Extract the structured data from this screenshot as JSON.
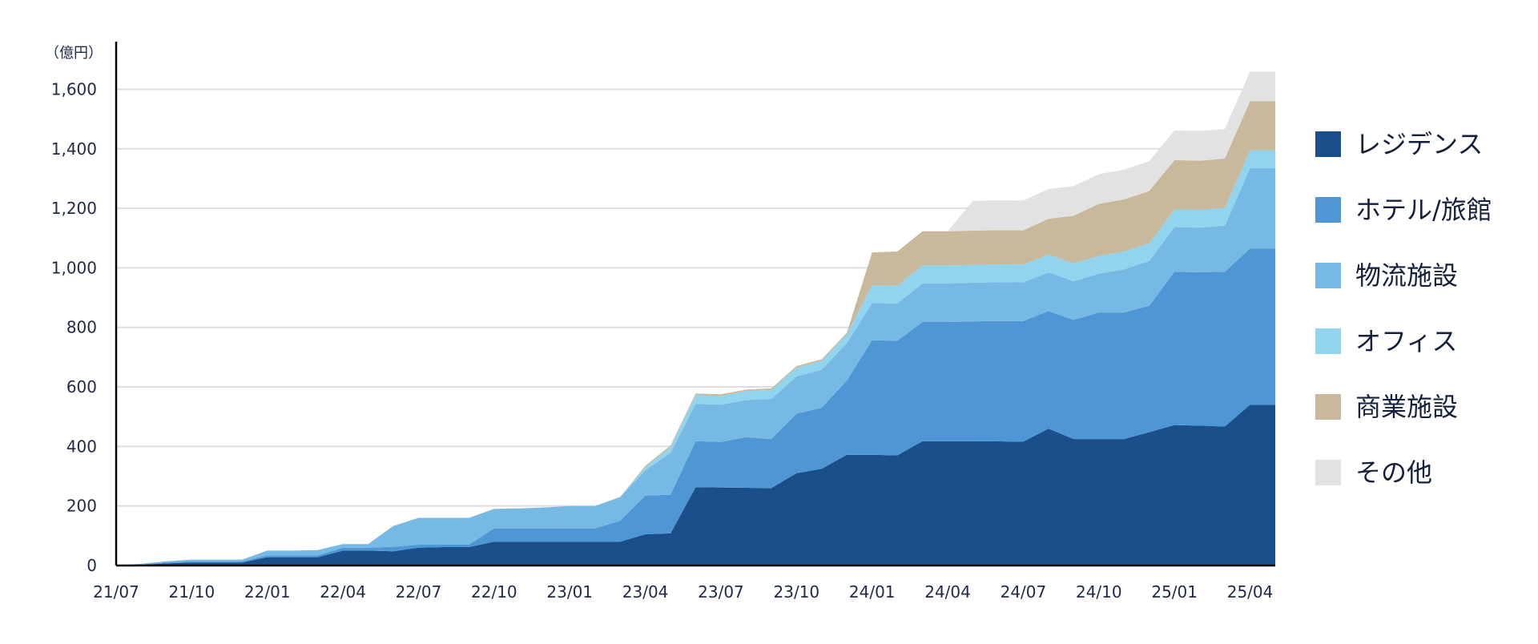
{
  "chart_data": {
    "type": "area",
    "stacked": true,
    "unit": "（億円）",
    "ylim": [
      0,
      1760
    ],
    "yticks": [
      0,
      200,
      400,
      600,
      800,
      1000,
      1200,
      1400,
      1600
    ],
    "ytick_labels": [
      "0",
      "200",
      "400",
      "600",
      "800",
      "1,000",
      "1,200",
      "1,400",
      "1,600"
    ],
    "xticks": [
      "21/07",
      "21/10",
      "22/01",
      "22/04",
      "22/07",
      "22/10",
      "23/01",
      "23/04",
      "23/07",
      "23/10",
      "24/01",
      "24/04",
      "24/07",
      "24/10",
      "25/01",
      "25/04"
    ],
    "x": [
      "21/07",
      "21/08",
      "21/09",
      "21/10",
      "21/11",
      "21/12",
      "22/01",
      "22/02",
      "22/03",
      "22/04",
      "22/05",
      "22/06",
      "22/07",
      "22/08",
      "22/09",
      "22/10",
      "22/11",
      "22/12",
      "23/01",
      "23/02",
      "23/03",
      "23/04",
      "23/05",
      "23/06",
      "23/07",
      "23/08",
      "23/09",
      "23/10",
      "23/11",
      "23/12",
      "24/01",
      "24/02",
      "24/03",
      "24/04",
      "24/05",
      "24/06",
      "24/07",
      "24/08",
      "24/09",
      "24/10",
      "24/11",
      "24/12",
      "25/01",
      "25/02",
      "25/03",
      "25/04",
      "25/05"
    ],
    "grid": true,
    "legend_position": "right",
    "series": [
      {
        "name": "レジデンス",
        "color": "#1a4f8b",
        "values": [
          0,
          3,
          7,
          10,
          10,
          10,
          28,
          28,
          28,
          50,
          50,
          48,
          60,
          62,
          62,
          80,
          80,
          80,
          80,
          80,
          80,
          105,
          108,
          263,
          262,
          261,
          260,
          310,
          325,
          372,
          372,
          370,
          418,
          418,
          418,
          417,
          416,
          460,
          425,
          425,
          425,
          448,
          472,
          470,
          467,
          540,
          540
        ]
      },
      {
        "name": "ホテル/旅館",
        "color": "#4f97d4",
        "values": [
          0,
          1,
          3,
          4,
          4,
          4,
          6,
          6,
          6,
          10,
          10,
          15,
          10,
          8,
          8,
          45,
          45,
          45,
          45,
          45,
          70,
          130,
          130,
          155,
          153,
          170,
          165,
          200,
          205,
          250,
          385,
          385,
          400,
          400,
          402,
          405,
          405,
          395,
          400,
          425,
          425,
          425,
          515,
          515,
          520,
          525,
          525
        ]
      },
      {
        "name": "物流施設",
        "color": "#76b9e4",
        "values": [
          0,
          2,
          4,
          6,
          6,
          6,
          16,
          16,
          18,
          12,
          12,
          70,
          90,
          90,
          90,
          65,
          67,
          70,
          75,
          75,
          80,
          85,
          140,
          125,
          125,
          125,
          135,
          125,
          128,
          125,
          125,
          125,
          130,
          130,
          130,
          130,
          130,
          130,
          130,
          130,
          145,
          150,
          150,
          150,
          155,
          270,
          270
        ]
      },
      {
        "name": "オフィス",
        "color": "#92d3ee",
        "values": [
          0,
          0,
          0,
          0,
          0,
          0,
          0,
          0,
          0,
          0,
          0,
          0,
          0,
          0,
          0,
          0,
          0,
          0,
          0,
          0,
          0,
          10,
          20,
          30,
          30,
          30,
          30,
          30,
          30,
          30,
          60,
          60,
          60,
          60,
          60,
          60,
          60,
          60,
          60,
          60,
          60,
          60,
          60,
          60,
          60,
          60,
          60
        ]
      },
      {
        "name": "商業施設",
        "color": "#c8b89c",
        "values": [
          0,
          0,
          0,
          0,
          0,
          0,
          0,
          0,
          0,
          0,
          0,
          0,
          0,
          0,
          0,
          0,
          0,
          0,
          0,
          0,
          0,
          5,
          5,
          5,
          5,
          5,
          5,
          5,
          5,
          5,
          110,
          115,
          115,
          115,
          115,
          115,
          115,
          120,
          160,
          175,
          175,
          175,
          165,
          165,
          165,
          165,
          165
        ]
      },
      {
        "name": "その他",
        "color": "#e2e2e2",
        "values": [
          0,
          0,
          0,
          0,
          0,
          0,
          0,
          0,
          0,
          0,
          0,
          0,
          0,
          0,
          0,
          0,
          0,
          0,
          0,
          0,
          0,
          0,
          0,
          0,
          0,
          0,
          0,
          0,
          0,
          0,
          0,
          0,
          0,
          0,
          100,
          100,
          100,
          100,
          100,
          100,
          100,
          100,
          100,
          100,
          100,
          100,
          100
        ]
      }
    ]
  }
}
